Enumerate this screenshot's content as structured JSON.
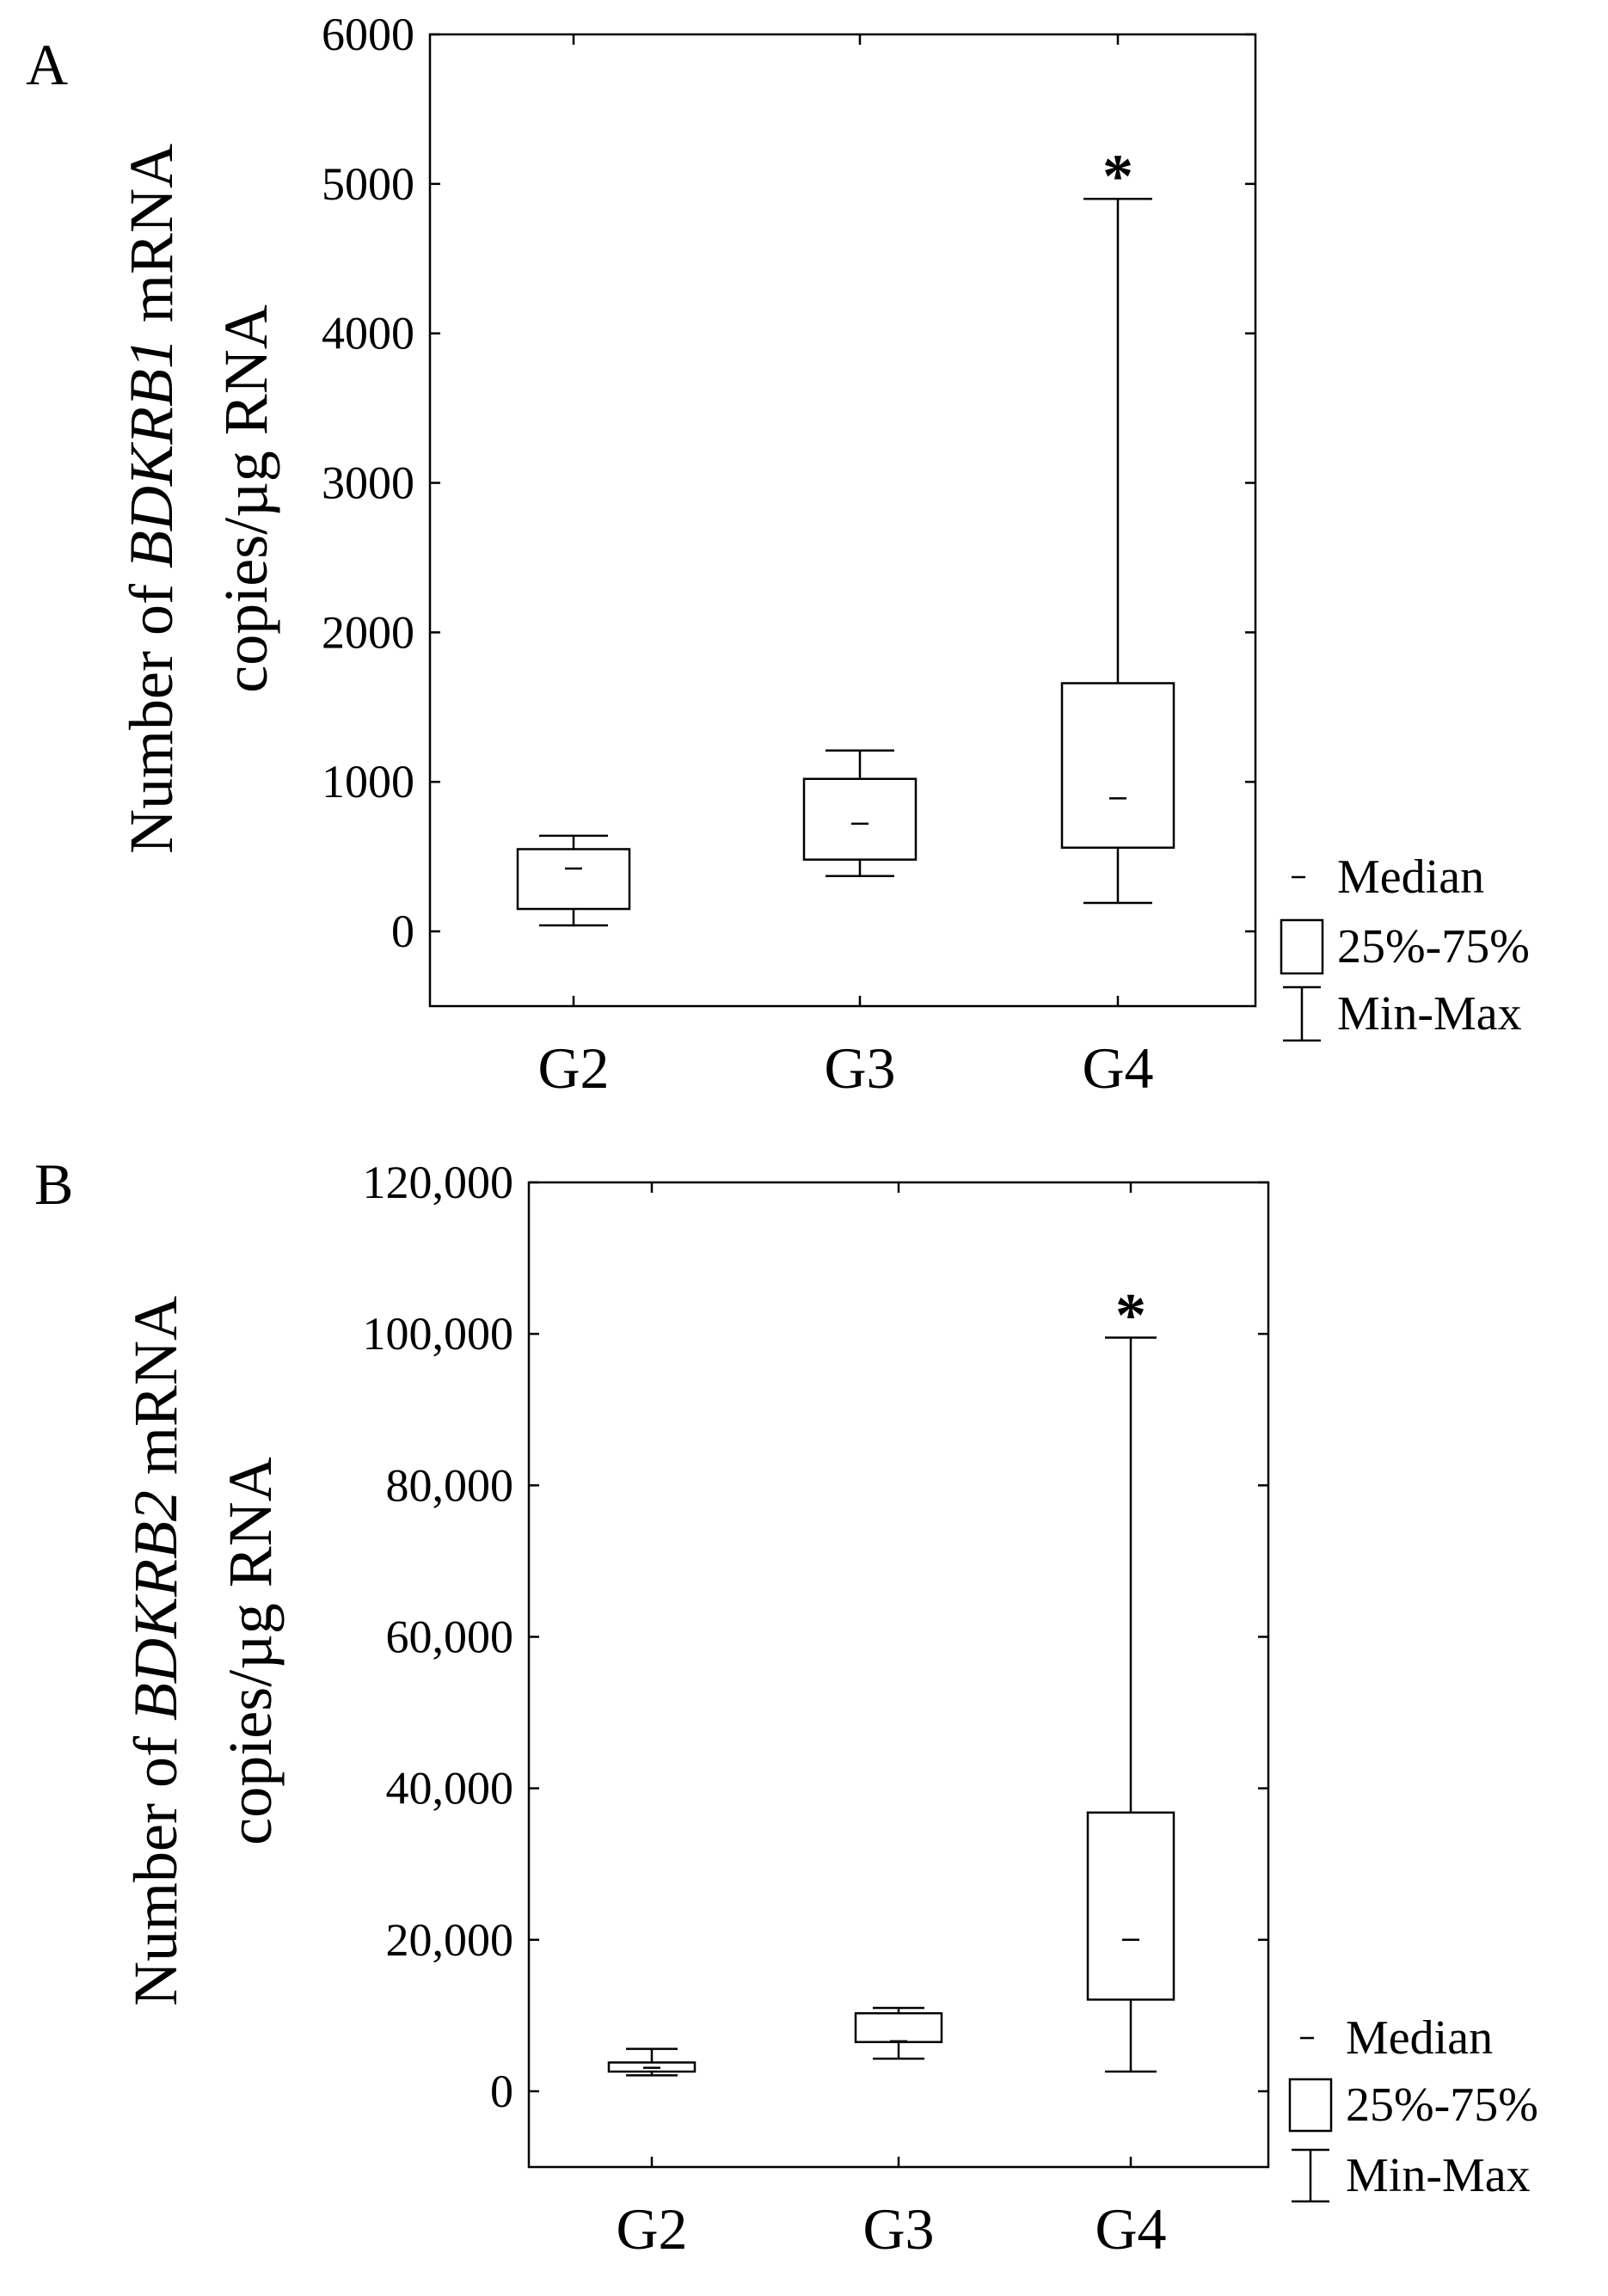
{
  "chart_data": [
    {
      "type": "box",
      "panel_label": "A",
      "ylabel_lines": [
        [
          {
            "text": "Number of "
          },
          {
            "text": "BDKRB1",
            "italic": true
          },
          {
            "text": " mRNA"
          }
        ],
        [
          {
            "text": "copies/µg RNA"
          }
        ]
      ],
      "categories": [
        "G2",
        "G3",
        "G4"
      ],
      "ylim": [
        -500,
        6000
      ],
      "yticks": [
        0,
        1000,
        2000,
        3000,
        4000,
        5000,
        6000
      ],
      "ytick_labels": [
        "0",
        "1000",
        "2000",
        "3000",
        "4000",
        "5000",
        "6000"
      ],
      "boxes": [
        {
          "category": "G2",
          "min": 40,
          "q1": 150,
          "median": 420,
          "q3": 550,
          "max": 640
        },
        {
          "category": "G3",
          "min": 370,
          "q1": 480,
          "median": 720,
          "q3": 1020,
          "max": 1210
        },
        {
          "category": "G4",
          "min": 190,
          "q1": 560,
          "median": 890,
          "q3": 1660,
          "max": 4900
        }
      ],
      "annotations": [
        {
          "category": "G4",
          "text": "*"
        }
      ],
      "legend": {
        "position": "right",
        "items": [
          "Median",
          "25%-75%",
          "Min-Max"
        ]
      }
    },
    {
      "type": "box",
      "panel_label": "B",
      "ylabel_lines": [
        [
          {
            "text": "Number of "
          },
          {
            "text": "BDKRB2",
            "italic": true
          },
          {
            "text": " mRNA"
          }
        ],
        [
          {
            "text": "copies/µg RNA"
          }
        ]
      ],
      "categories": [
        "G2",
        "G3",
        "G4"
      ],
      "ylim": [
        -10000,
        120000
      ],
      "yticks": [
        0,
        20000,
        40000,
        60000,
        80000,
        100000,
        120000
      ],
      "ytick_labels": [
        "0",
        "20,000",
        "40,000",
        "60,000",
        "80,000",
        "100,000",
        "120,000"
      ],
      "boxes": [
        {
          "category": "G2",
          "min": 2100,
          "q1": 2600,
          "median": 3100,
          "q3": 3800,
          "max": 5600
        },
        {
          "category": "G3",
          "min": 4300,
          "q1": 6500,
          "median": 6600,
          "q3": 10300,
          "max": 11000
        },
        {
          "category": "G4",
          "min": 2600,
          "q1": 12100,
          "median": 20000,
          "q3": 36800,
          "max": 99500
        }
      ],
      "annotations": [
        {
          "category": "G4",
          "text": "*"
        }
      ],
      "legend": {
        "position": "right",
        "items": [
          "Median",
          "25%-75%",
          "Min-Max"
        ]
      }
    }
  ]
}
